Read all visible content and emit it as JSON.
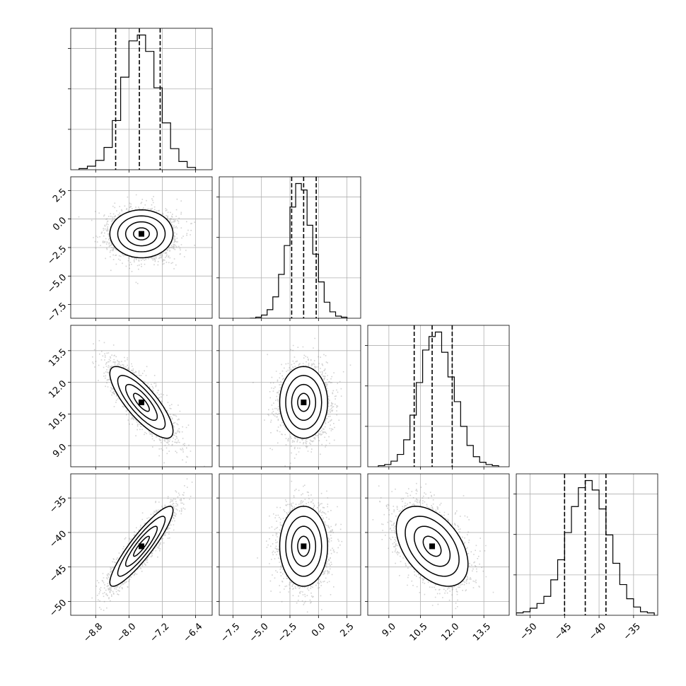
{
  "chart_data": {
    "type": "corner",
    "title": "",
    "colors": {
      "line": "#000000",
      "grid": "#b0b0b0",
      "points": "#7f7f7f",
      "frame": "#000000"
    },
    "parameters": [
      {
        "index": 0,
        "xlabel": "",
        "range": [
          -9.4,
          -6.0
        ],
        "ticks": [
          -8.8,
          -8.0,
          -7.2,
          -6.4
        ],
        "tick_labels": [
          "−8.8",
          "−8.0",
          "−7.2",
          "−6.4"
        ],
        "mean": -7.7,
        "sd": 0.38
      },
      {
        "index": 1,
        "xlabel": "",
        "range": [
          -8.7,
          3.7
        ],
        "ticks": [
          -7.5,
          -5.0,
          -2.5,
          0.0,
          2.5
        ],
        "tick_labels": [
          "−7.5",
          "−5.0",
          "−2.5",
          "0.0",
          "2.5"
        ],
        "mean": -1.3,
        "sd": 1.05
      },
      {
        "index": 2,
        "xlabel": "",
        "range": [
          8.0,
          14.7
        ],
        "ticks": [
          9.0,
          10.5,
          12.0,
          13.5
        ],
        "tick_labels": [
          "9.0",
          "10.5",
          "12.0",
          "13.5"
        ],
        "mean": 11.05,
        "sd": 0.85
      },
      {
        "index": 3,
        "xlabel": "",
        "range": [
          -52.0,
          -31.5
        ],
        "ticks": [
          -50,
          -45,
          -40,
          -35
        ],
        "tick_labels": [
          "−50",
          "−45",
          "−40",
          "−35"
        ],
        "mean": -42.0,
        "sd": 2.9
      }
    ],
    "correlations": [
      {
        "x": 0,
        "y": 1,
        "rho": 0.0
      },
      {
        "x": 0,
        "y": 2,
        "rho": -0.8
      },
      {
        "x": 1,
        "y": 2,
        "rho": 0.0
      },
      {
        "x": 0,
        "y": 3,
        "rho": 0.9
      },
      {
        "x": 1,
        "y": 3,
        "rho": 0.0
      },
      {
        "x": 2,
        "y": 3,
        "rho": -0.45
      }
    ],
    "quantiles": [
      0.16,
      0.5,
      0.84
    ],
    "histograms": [
      {
        "param": 0,
        "bin_edges": [
          -9.2,
          -9.0,
          -8.8,
          -8.6,
          -8.4,
          -8.2,
          -8.0,
          -7.8,
          -7.6,
          -7.4,
          -7.2,
          -7.0,
          -6.8,
          -6.6,
          -6.4
        ],
        "counts": [
          1,
          3,
          8,
          19,
          42,
          79,
          110,
          115,
          101,
          70,
          40,
          18,
          7,
          2
        ],
        "quantile_values": [
          -8.32,
          -7.75,
          -7.25
        ]
      },
      {
        "param": 1,
        "bin_edges": [
          -6.0,
          -5.5,
          -5.0,
          -4.5,
          -4.0,
          -3.5,
          -3.0,
          -2.5,
          -2.0,
          -1.5,
          -1.0,
          -0.5,
          0.0,
          0.5,
          1.0,
          1.5,
          2.0,
          2.5
        ],
        "counts": [
          0,
          1,
          3,
          8,
          20,
          41,
          68,
          104,
          126,
          120,
          87,
          60,
          34,
          15,
          6,
          2,
          1
        ],
        "quantile_values": [
          -2.35,
          -1.3,
          -0.2
        ]
      },
      {
        "param": 2,
        "bin_edges": [
          8.5,
          8.8,
          9.1,
          9.4,
          9.7,
          10.0,
          10.3,
          10.6,
          10.9,
          11.2,
          11.5,
          11.8,
          12.1,
          12.4,
          12.7,
          13.0,
          13.3,
          13.6,
          13.9,
          14.2
        ],
        "counts": [
          1,
          2,
          5,
          11,
          24,
          46,
          75,
          104,
          116,
          120,
          102,
          80,
          58,
          36,
          19,
          9,
          4,
          2,
          1
        ],
        "quantile_values": [
          10.2,
          11.05,
          12.0
        ]
      },
      {
        "param": 3,
        "bin_edges": [
          -52,
          -51,
          -50,
          -49,
          -48,
          -47,
          -46,
          -45,
          -44,
          -43,
          -42,
          -41,
          -40,
          -39,
          -38,
          -37,
          -36,
          -35,
          -34,
          -33,
          -32
        ],
        "counts": [
          2,
          3,
          6,
          10,
          16,
          30,
          47,
          70,
          92,
          108,
          114,
          106,
          90,
          68,
          44,
          26,
          14,
          7,
          3,
          2
        ],
        "quantile_values": [
          -45.0,
          -42.0,
          -39.0
        ]
      }
    ]
  }
}
